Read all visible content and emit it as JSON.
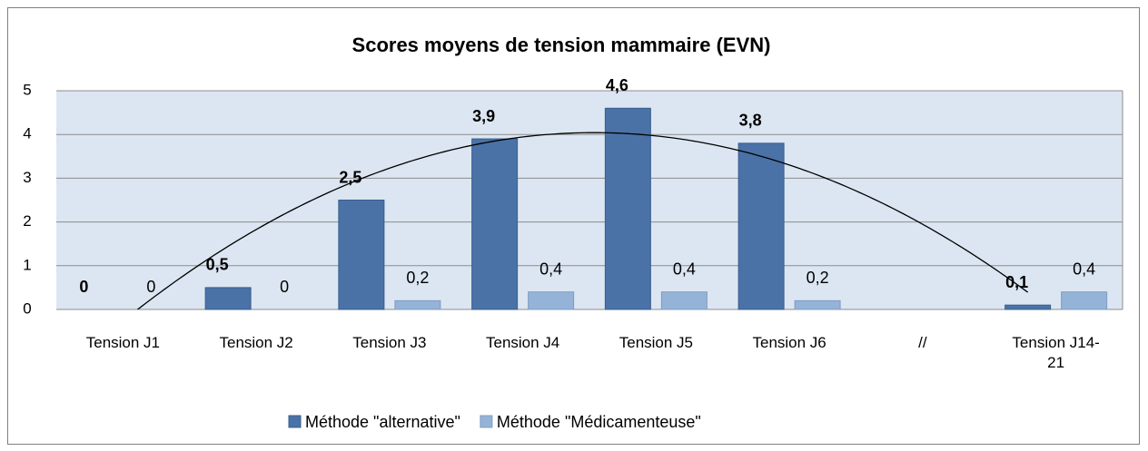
{
  "chart_data": {
    "type": "bar",
    "title": "Scores moyens de tension mammaire (EVN)",
    "categories": [
      "Tension J1",
      "Tension J2",
      "Tension J3",
      "Tension J4",
      "Tension J5",
      "Tension J6",
      "//",
      "Tension J14-21"
    ],
    "series": [
      {
        "name": "Méthode \"alternative\"",
        "color": "#4a72a6",
        "values": [
          0,
          0.5,
          2.5,
          3.9,
          4.6,
          3.8,
          null,
          0.1
        ],
        "value_labels": [
          "0",
          "0,5",
          "2,5",
          "3,9",
          "4,6",
          "3,8",
          null,
          "0,1"
        ]
      },
      {
        "name": "Méthode \"Médicamenteuse\"",
        "color": "#95b3d7",
        "values": [
          0,
          0,
          0.2,
          0.4,
          0.4,
          0.2,
          null,
          0.4
        ],
        "value_labels": [
          "0",
          "0",
          "0,2",
          "0,4",
          "0,4",
          "0,2",
          null,
          "0,4"
        ]
      }
    ],
    "ylim": [
      0,
      5
    ],
    "yticks": [
      0,
      1,
      2,
      3,
      4,
      5
    ],
    "grid": true,
    "legend": "bottom",
    "trendline": {
      "series": 0,
      "order": 2,
      "color": "#000000"
    }
  }
}
